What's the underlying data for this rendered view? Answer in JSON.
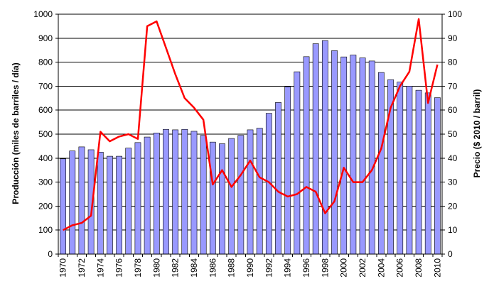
{
  "chart_data": {
    "type": "bar+line",
    "title": "",
    "ylabel_left": "Producción (miles de barriles / día)",
    "ylabel_right": "Precio ($ 2010 / barril)",
    "xlabel": "",
    "ylim_left": [
      0,
      1000
    ],
    "ylim_right": [
      0,
      100
    ],
    "yticks_left": [
      0,
      100,
      200,
      300,
      400,
      500,
      600,
      700,
      800,
      900,
      1000
    ],
    "yticks_right": [
      0,
      10,
      20,
      30,
      40,
      50,
      60,
      70,
      80,
      90,
      100
    ],
    "grid": "horizontal",
    "categories": [
      1970,
      1971,
      1972,
      1973,
      1974,
      1975,
      1976,
      1977,
      1978,
      1979,
      1980,
      1981,
      1982,
      1983,
      1984,
      1985,
      1986,
      1987,
      1988,
      1989,
      1990,
      1991,
      1992,
      1993,
      1994,
      1995,
      1996,
      1997,
      1998,
      1999,
      2000,
      2001,
      2002,
      2003,
      2004,
      2005,
      2006,
      2007,
      2008,
      2009,
      2010
    ],
    "x_tick_labels": [
      "1970",
      "1972",
      "1974",
      "1976",
      "1978",
      "1980",
      "1982",
      "1984",
      "1986",
      "1988",
      "1990",
      "1992",
      "1994",
      "1996",
      "1998",
      "2000",
      "2002",
      "2004",
      "2006",
      "2008",
      "2010"
    ],
    "series": [
      {
        "name": "",
        "type": "bar",
        "axis": "left",
        "color": "#9999ff",
        "values": [
          397,
          430,
          447,
          435,
          425,
          408,
          408,
          442,
          465,
          488,
          505,
          520,
          518,
          520,
          512,
          495,
          467,
          460,
          482,
          495,
          518,
          525,
          587,
          632,
          697,
          760,
          823,
          877,
          890,
          848,
          822,
          830,
          818,
          805,
          757,
          727,
          717,
          700,
          683,
          672,
          652
        ]
      },
      {
        "name": "",
        "type": "line",
        "axis": "right",
        "color": "#ff0000",
        "values": [
          10,
          12,
          13,
          16,
          51,
          47,
          49,
          50,
          48,
          95,
          97,
          86,
          75,
          65,
          61,
          56,
          29,
          35,
          28,
          33,
          39,
          32,
          30,
          26,
          24,
          25,
          28,
          26,
          17,
          22,
          36,
          30,
          30,
          35,
          44,
          61,
          70,
          76,
          98,
          63,
          79
        ]
      }
    ]
  }
}
